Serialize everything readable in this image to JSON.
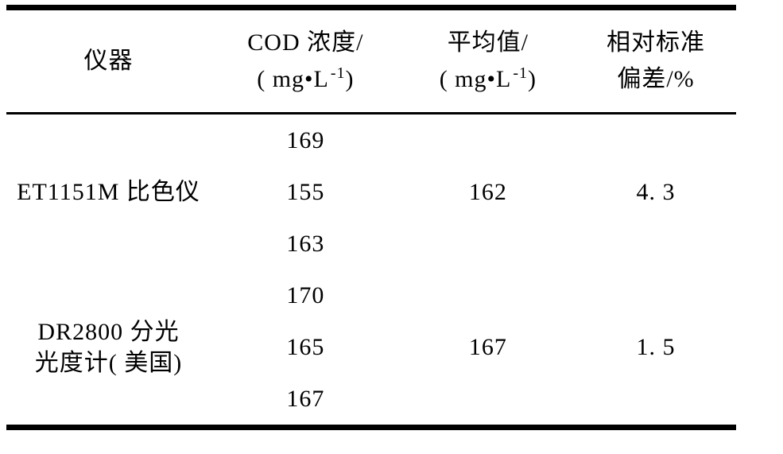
{
  "chart_data": {
    "type": "table",
    "title": "",
    "columns": [
      "仪器",
      "COD 浓度/( mg•L-1)",
      "平均值/( mg•L-1)",
      "相对标准偏差/%"
    ],
    "rows": [
      [
        "ET1151M 比色仪",
        169,
        162,
        4.3
      ],
      [
        "ET1151M 比色仪",
        155,
        162,
        4.3
      ],
      [
        "ET1151M 比色仪",
        163,
        162,
        4.3
      ],
      [
        "DR2800 分光光度计( 美国)",
        170,
        167,
        1.5
      ],
      [
        "DR2800 分光光度计( 美国)",
        165,
        167,
        1.5
      ],
      [
        "DR2800 分光光度计( 美国)",
        167,
        167,
        1.5
      ]
    ]
  },
  "table": {
    "headers": {
      "instrument": "仪器",
      "cod": {
        "line1": "COD 浓度/",
        "unit_prefix": "( mg•L",
        "unit_sup": "-1",
        "unit_suffix": ")"
      },
      "average": {
        "line1": "平均值/",
        "unit_prefix": "( mg•L",
        "unit_sup": "-1",
        "unit_suffix": ")"
      },
      "rsd": {
        "line1": "相对标准",
        "line2": "偏差/%"
      }
    },
    "groups": [
      {
        "name_line1": "ET1151M 比色仪",
        "name_line2": "",
        "readings": [
          "169",
          "155",
          "163"
        ],
        "average": "162",
        "rsd": "4. 3"
      },
      {
        "name_line1": "DR2800 分光",
        "name_line2": "光度计( 美国)",
        "readings": [
          "170",
          "165",
          "167"
        ],
        "average": "167",
        "rsd": "1. 5"
      }
    ]
  }
}
